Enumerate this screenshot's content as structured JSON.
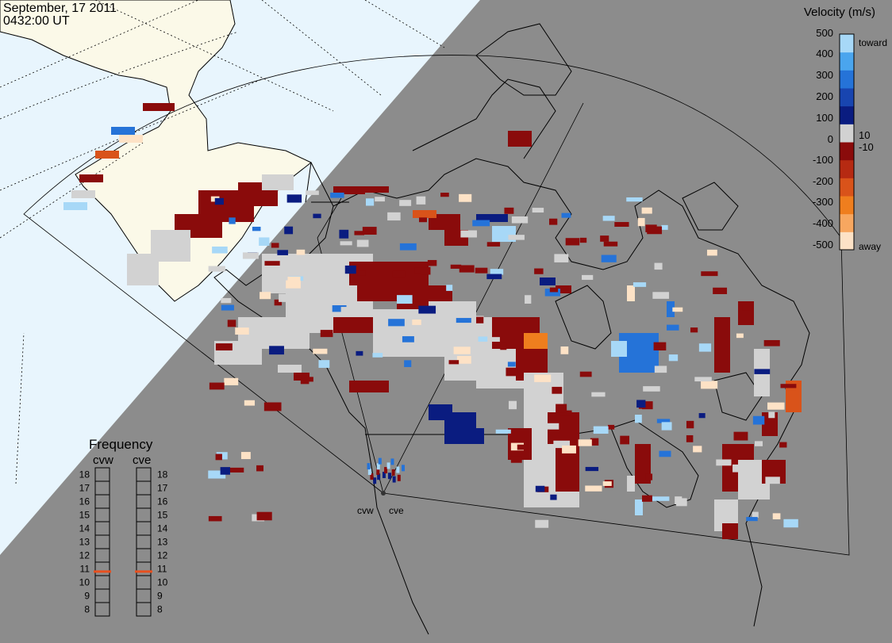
{
  "header": {
    "date": "September, 17 2011",
    "time": "0432:00 UT"
  },
  "colorbar": {
    "title": "Velocity (m/s)",
    "ticks": [
      "500",
      "400",
      "300",
      "200",
      "100",
      "10",
      "0",
      "-10",
      "-100",
      "-200",
      "-300",
      "-400",
      "-500"
    ],
    "toward_label": "toward",
    "away_label": "away",
    "colors": [
      "#fde2c6",
      "#f7a760",
      "#ef7e1e",
      "#d9531a",
      "#b62a12",
      "#8a0b0b",
      "#d2d2d2",
      "#0a1c80",
      "#1845b0",
      "#2573d8",
      "#4aa5ee",
      "#a7d8f7"
    ]
  },
  "frequency": {
    "title": "Frequency",
    "left_label": "cvw",
    "right_label": "cve",
    "levels": [
      "18",
      "17",
      "16",
      "15",
      "14",
      "13",
      "12",
      "11",
      "10",
      "9",
      "8"
    ],
    "cvw_mhz": 10.8,
    "cve_mhz": 10.8,
    "marker_color": "#e8501f"
  },
  "radars": {
    "west": "cvw",
    "east": "cve"
  },
  "map_colors": {
    "sunlit_ocean": "#e8f5fd",
    "sunlit_land": "#fbf9e8",
    "night": "#8c8c8c",
    "low_scatter": "#d2d2d2"
  }
}
